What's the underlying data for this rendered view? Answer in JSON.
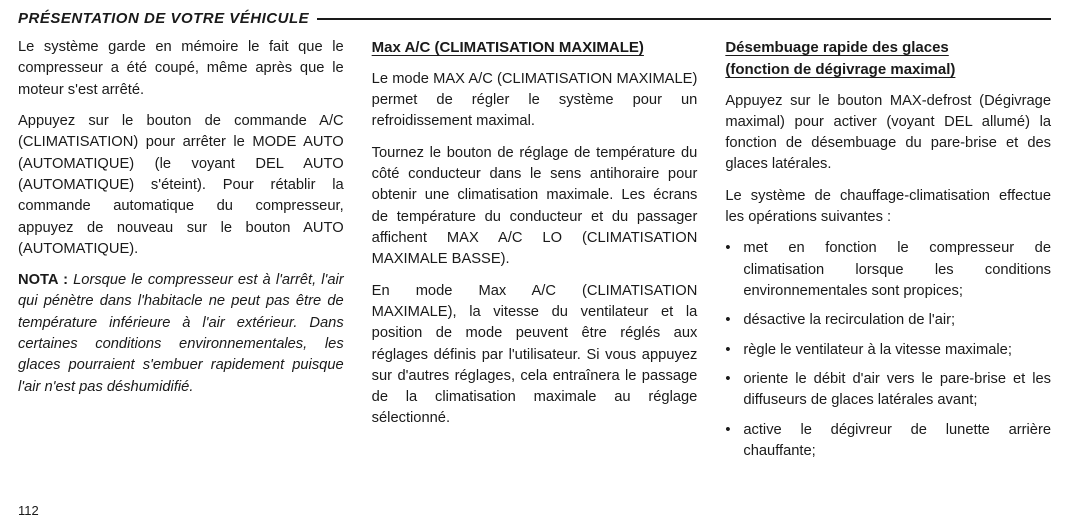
{
  "header": {
    "title": "PRÉSENTATION DE VOTRE VÉHICULE"
  },
  "col1": {
    "p1": "Le système garde en mémoire le fait que le compresseur a été coupé, même après que le moteur s'est arrêté.",
    "p2": "Appuyez sur le bouton de commande A/C (CLIMATISATION) pour arrêter le MODE AUTO (AUTOMATIQUE) (le voyant DEL AUTO (AUTOMATIQUE) s'éteint). Pour rétablir la commande automatique du compresseur, appuyez de nouveau sur le bouton AUTO (AUTOMATIQUE).",
    "nota_label": "NOTA :",
    "nota_text": "Lorsque le compresseur est à l'arrêt, l'air qui pénètre dans l'habitacle ne peut pas être de température inférieure à l'air extérieur. Dans certaines conditions environnementales, les glaces pourraient s'embuer rapidement puisque l'air n'est pas déshumidifié."
  },
  "col2": {
    "heading": "Max A/C (CLIMATISATION MAXIMALE)",
    "p1": "Le mode MAX A/C (CLIMATISATION MAXIMALE) permet de régler le système pour un refroidissement maximal.",
    "p2": "Tournez le bouton de réglage de température du côté conducteur dans le sens antihoraire pour obtenir une climatisation maximale. Les écrans de température du conducteur et du passager affichent MAX A/C LO (CLIMATISATION MAXIMALE BASSE).",
    "p3": "En mode Max A/C (CLIMATISATION MAXIMALE), la vitesse du ventilateur et la position de mode peuvent être réglés aux réglages définis par l'utilisateur. Si vous appuyez sur d'autres réglages, cela entraînera le passage de la climatisation maximale au réglage sélectionné."
  },
  "col3": {
    "heading_line1": "Désembuage rapide des glaces",
    "heading_line2": "(fonction de dégivrage maximal)",
    "p1": "Appuyez sur le bouton MAX-defrost (Dégivrage maximal) pour activer (voyant DEL allumé) la fonction de désembuage du pare-brise et des glaces latérales.",
    "p2": "Le système de chauffage-climatisation effectue les opérations suivantes :",
    "bullets": [
      "met en fonction le compresseur de climatisation lorsque les conditions environnementales sont propices;",
      "désactive la recirculation de l'air;",
      "règle le ventilateur à la vitesse maximale;",
      "oriente le débit d'air vers le pare-brise et les diffuseurs de glaces latérales avant;",
      "active le dégivreur de lunette arrière chauffante;"
    ]
  },
  "page_number": "112"
}
